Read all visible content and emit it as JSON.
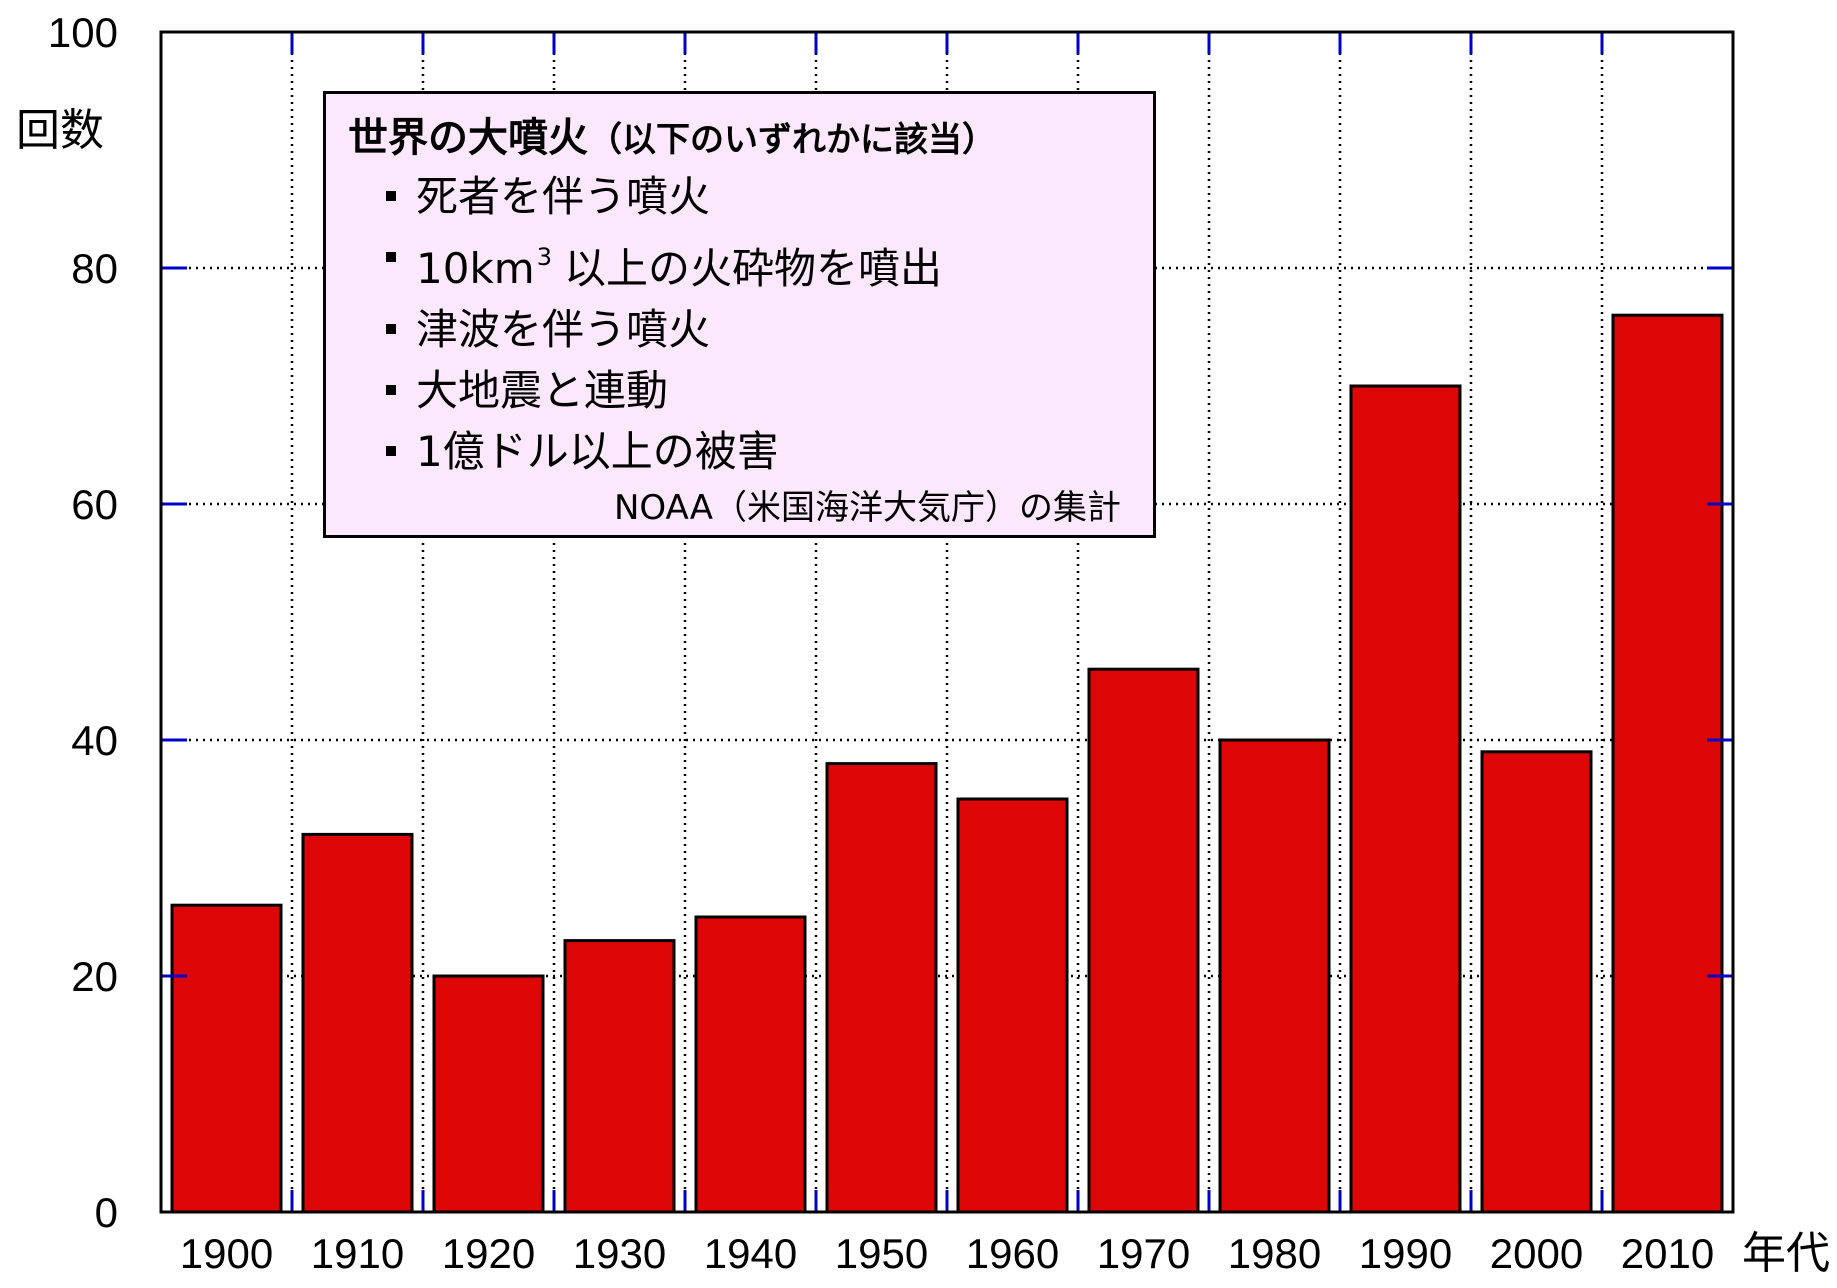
{
  "chart_data": {
    "type": "bar",
    "categories": [
      "1900",
      "1910",
      "1920",
      "1930",
      "1940",
      "1950",
      "1960",
      "1970",
      "1980",
      "1990",
      "2000",
      "2010"
    ],
    "values": [
      26,
      32,
      20,
      23,
      25,
      38,
      35,
      46,
      40,
      70,
      39,
      76
    ],
    "ylabel": "回数",
    "xlabel": "年代",
    "ylim": [
      0,
      100
    ],
    "yticks": [
      "0",
      "20",
      "40",
      "60",
      "80",
      "100"
    ],
    "grid": true,
    "legend_placement": "top-left",
    "bar_color": "#dd0707",
    "grid_tick_color": "#0000c8"
  },
  "legend": {
    "title_main": "世界の大噴火",
    "title_paren": "（以下のいずれかに該当）",
    "items": [
      {
        "text": "死者を伴う噴火"
      },
      {
        "text_before": "10km",
        "superscript": "3",
        "text_after": "以上の火砕物を噴出"
      },
      {
        "text": "津波を伴う噴火"
      },
      {
        "text": "大地震と連動"
      },
      {
        "text": "1億ドル以上の被害"
      }
    ],
    "source": "NOAA（米国海洋大気庁）の集計"
  }
}
